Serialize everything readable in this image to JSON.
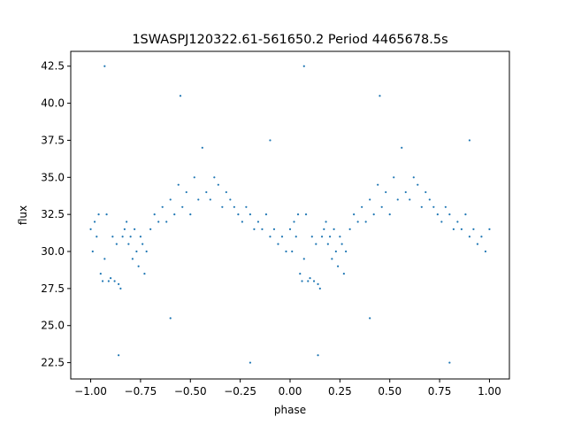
{
  "chart_data": {
    "type": "scatter",
    "title": "1SWASPJ120322.61-561650.2 Period 4465678.5s",
    "xlabel": "phase",
    "ylabel": "flux",
    "xlim": [
      -1.1,
      1.1
    ],
    "ylim": [
      21.4,
      43.5
    ],
    "xticks": [
      -1.0,
      -0.75,
      -0.5,
      -0.25,
      0.0,
      0.25,
      0.5,
      0.75,
      1.0
    ],
    "xtick_labels": [
      "−1.00",
      "−0.75",
      "−0.50",
      "−0.25",
      "0.00",
      "0.25",
      "0.50",
      "0.75",
      "1.00"
    ],
    "yticks": [
      22.5,
      25.0,
      27.5,
      30.0,
      32.5,
      35.0,
      37.5,
      40.0,
      42.5
    ],
    "ytick_labels": [
      "22.5",
      "25.0",
      "27.5",
      "30.0",
      "32.5",
      "35.0",
      "37.5",
      "40.0",
      "42.5"
    ],
    "grid": false,
    "marker_color": "#1f77b4",
    "series": [
      {
        "values_note_free": true,
        "points": [
          [
            -1.0,
            31.5
          ],
          [
            -0.99,
            30.0
          ],
          [
            -0.98,
            32.0
          ],
          [
            -0.97,
            31.0
          ],
          [
            -0.96,
            32.5
          ],
          [
            -0.95,
            28.5
          ],
          [
            -0.94,
            28.0
          ],
          [
            -0.93,
            29.5
          ],
          [
            -0.92,
            32.5
          ],
          [
            -0.91,
            28.0
          ],
          [
            -0.9,
            28.2
          ],
          [
            -0.89,
            31.0
          ],
          [
            -0.88,
            28.0
          ],
          [
            -0.87,
            30.5
          ],
          [
            -0.86,
            27.8
          ],
          [
            -0.85,
            27.5
          ],
          [
            -0.84,
            31.0
          ],
          [
            -0.83,
            31.5
          ],
          [
            -0.82,
            32.0
          ],
          [
            -0.81,
            30.5
          ],
          [
            -0.8,
            31.0
          ],
          [
            -0.79,
            29.5
          ],
          [
            -0.78,
            31.5
          ],
          [
            -0.77,
            30.0
          ],
          [
            -0.76,
            29.0
          ],
          [
            -0.75,
            31.0
          ],
          [
            -0.74,
            30.5
          ],
          [
            -0.73,
            28.5
          ],
          [
            -0.72,
            30.0
          ],
          [
            -0.7,
            31.5
          ],
          [
            -0.68,
            32.5
          ],
          [
            -0.66,
            32.0
          ],
          [
            -0.64,
            33.0
          ],
          [
            -0.62,
            32.0
          ],
          [
            -0.6,
            33.5
          ],
          [
            -0.58,
            32.5
          ],
          [
            -0.56,
            34.5
          ],
          [
            -0.54,
            33.0
          ],
          [
            -0.52,
            34.0
          ],
          [
            -0.5,
            32.5
          ],
          [
            -0.48,
            35.0
          ],
          [
            -0.46,
            33.5
          ],
          [
            -0.44,
            37.0
          ],
          [
            -0.42,
            34.0
          ],
          [
            -0.4,
            33.5
          ],
          [
            -0.38,
            35.0
          ],
          [
            -0.36,
            34.5
          ],
          [
            -0.34,
            33.0
          ],
          [
            -0.32,
            34.0
          ],
          [
            -0.3,
            33.5
          ],
          [
            -0.28,
            33.0
          ],
          [
            -0.26,
            32.5
          ],
          [
            -0.24,
            32.0
          ],
          [
            -0.22,
            33.0
          ],
          [
            -0.2,
            32.5
          ],
          [
            -0.18,
            31.5
          ],
          [
            -0.16,
            32.0
          ],
          [
            -0.14,
            31.5
          ],
          [
            -0.12,
            32.5
          ],
          [
            -0.1,
            31.0
          ],
          [
            -0.08,
            31.5
          ],
          [
            -0.06,
            30.5
          ],
          [
            -0.04,
            31.0
          ],
          [
            -0.02,
            30.0
          ],
          [
            0.0,
            31.5
          ],
          [
            0.01,
            30.0
          ],
          [
            0.02,
            32.0
          ],
          [
            0.03,
            31.0
          ],
          [
            0.04,
            32.5
          ],
          [
            0.05,
            28.5
          ],
          [
            0.06,
            28.0
          ],
          [
            0.07,
            29.5
          ],
          [
            0.08,
            32.5
          ],
          [
            0.09,
            28.0
          ],
          [
            0.1,
            28.2
          ],
          [
            0.11,
            31.0
          ],
          [
            0.12,
            28.0
          ],
          [
            0.13,
            30.5
          ],
          [
            0.14,
            27.8
          ],
          [
            0.15,
            27.5
          ],
          [
            0.16,
            31.0
          ],
          [
            0.17,
            31.5
          ],
          [
            0.18,
            32.0
          ],
          [
            0.19,
            30.5
          ],
          [
            0.2,
            31.0
          ],
          [
            0.21,
            29.5
          ],
          [
            0.22,
            31.5
          ],
          [
            0.23,
            30.0
          ],
          [
            0.24,
            29.0
          ],
          [
            0.25,
            31.0
          ],
          [
            0.26,
            30.5
          ],
          [
            0.27,
            28.5
          ],
          [
            0.28,
            30.0
          ],
          [
            0.3,
            31.5
          ],
          [
            0.32,
            32.5
          ],
          [
            0.34,
            32.0
          ],
          [
            0.36,
            33.0
          ],
          [
            0.38,
            32.0
          ],
          [
            0.4,
            33.5
          ],
          [
            0.42,
            32.5
          ],
          [
            0.44,
            34.5
          ],
          [
            0.46,
            33.0
          ],
          [
            0.48,
            34.0
          ],
          [
            0.5,
            32.5
          ],
          [
            0.52,
            35.0
          ],
          [
            0.54,
            33.5
          ],
          [
            0.56,
            37.0
          ],
          [
            0.58,
            34.0
          ],
          [
            0.6,
            33.5
          ],
          [
            0.62,
            35.0
          ],
          [
            0.64,
            34.5
          ],
          [
            0.66,
            33.0
          ],
          [
            0.68,
            34.0
          ],
          [
            0.7,
            33.5
          ],
          [
            0.72,
            33.0
          ],
          [
            0.74,
            32.5
          ],
          [
            0.76,
            32.0
          ],
          [
            0.78,
            33.0
          ],
          [
            0.8,
            32.5
          ],
          [
            0.82,
            31.5
          ],
          [
            0.84,
            32.0
          ],
          [
            0.86,
            31.5
          ],
          [
            0.88,
            32.5
          ],
          [
            0.9,
            31.0
          ],
          [
            0.92,
            31.5
          ],
          [
            0.94,
            30.5
          ],
          [
            0.96,
            31.0
          ],
          [
            0.98,
            30.0
          ],
          [
            1.0,
            31.5
          ],
          [
            -0.93,
            42.5
          ],
          [
            -0.55,
            40.5
          ],
          [
            0.07,
            42.5
          ],
          [
            0.45,
            40.5
          ],
          [
            -0.86,
            23.0
          ],
          [
            -0.2,
            22.5
          ],
          [
            0.14,
            23.0
          ],
          [
            0.8,
            22.5
          ],
          [
            -0.6,
            25.5
          ],
          [
            0.4,
            25.5
          ],
          [
            -0.1,
            37.5
          ],
          [
            0.9,
            37.5
          ]
        ]
      }
    ]
  }
}
